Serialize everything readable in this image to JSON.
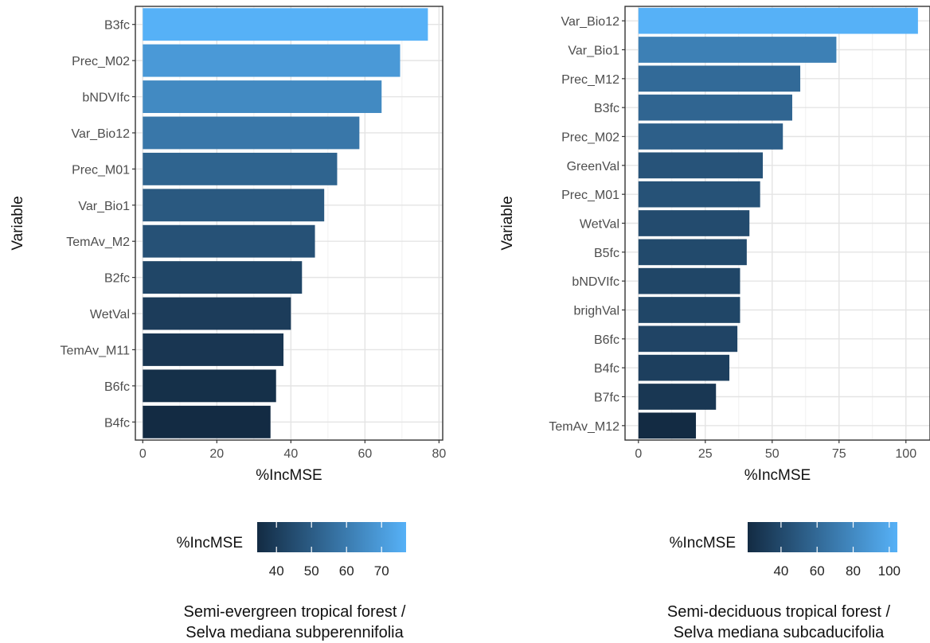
{
  "chart_data": [
    {
      "type": "bar",
      "orientation": "horizontal",
      "ylabel": "Variable",
      "xlabel": "%IncMSE",
      "categories": [
        "B3fc",
        "Prec_M02",
        "bNDVIfc",
        "Var_Bio12",
        "Prec_M01",
        "Var_Bio1",
        "TemAv_M2",
        "B2fc",
        "WetVal",
        "TemAv_M11",
        "B6fc",
        "B4fc"
      ],
      "values": [
        77,
        69.5,
        64.5,
        58.5,
        52.5,
        49,
        46.5,
        43,
        40,
        38,
        36,
        34.5
      ],
      "xlim": [
        -2,
        81
      ],
      "xticks": [
        0,
        20,
        40,
        60,
        80
      ],
      "grid": true,
      "colorbar": {
        "title": "%IncMSE",
        "range": [
          34.5,
          77
        ],
        "ticks": [
          40,
          50,
          60,
          70
        ],
        "low_color": "#132B43",
        "high_color": "#56B1F7"
      },
      "caption": [
        "Semi-evergreen tropical forest /",
        "Selva mediana subperennifolia"
      ]
    },
    {
      "type": "bar",
      "orientation": "horizontal",
      "ylabel": "Variable",
      "xlabel": "%IncMSE",
      "categories": [
        "Var_Bio12",
        "Var_Bio1",
        "Prec_M12",
        "B3fc",
        "Prec_M02",
        "GreenVal",
        "Prec_M01",
        "WetVal",
        "B5fc",
        "bNDVIfc",
        "brighVal",
        "B6fc",
        "B4fc",
        "B7fc",
        "TemAv_M12"
      ],
      "values": [
        104.5,
        74,
        60.5,
        57.5,
        54,
        46.5,
        45.5,
        41.5,
        40.5,
        38,
        38,
        37,
        34,
        29,
        21.5
      ],
      "xlim": [
        -5,
        109
      ],
      "xticks": [
        0,
        25,
        50,
        75,
        100
      ],
      "grid": true,
      "colorbar": {
        "title": "%IncMSE",
        "range": [
          21.5,
          104.5
        ],
        "ticks": [
          40,
          60,
          80,
          100
        ],
        "low_color": "#132B43",
        "high_color": "#56B1F7"
      },
      "caption": [
        "Semi-deciduous tropical forest /",
        "Selva mediana subcaducifolia"
      ]
    }
  ]
}
